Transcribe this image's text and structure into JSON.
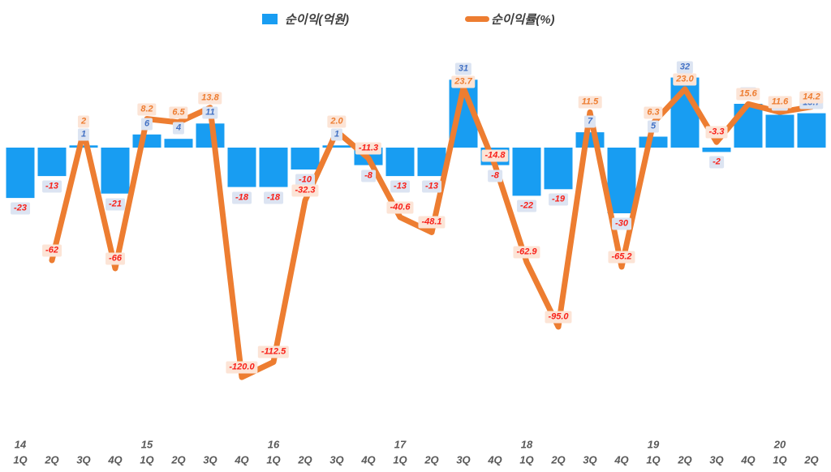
{
  "chart_data": {
    "type": "bar+line",
    "title": "",
    "legend": [
      {
        "label": "순이익(억원)",
        "series_type": "bar",
        "color": "#189df2"
      },
      {
        "label": "순이익률(%)",
        "series_type": "line",
        "color": "#ed7d31"
      }
    ],
    "categories": [
      {
        "year": "14",
        "quarter": "1Q"
      },
      {
        "quarter": "2Q"
      },
      {
        "quarter": "3Q"
      },
      {
        "quarter": "4Q"
      },
      {
        "year": "15",
        "quarter": "1Q"
      },
      {
        "quarter": "2Q"
      },
      {
        "quarter": "3Q"
      },
      {
        "quarter": "4Q"
      },
      {
        "year": "16",
        "quarter": "1Q"
      },
      {
        "quarter": "2Q"
      },
      {
        "quarter": "3Q"
      },
      {
        "quarter": "4Q"
      },
      {
        "year": "17",
        "quarter": "1Q"
      },
      {
        "quarter": "2Q"
      },
      {
        "quarter": "3Q"
      },
      {
        "quarter": "4Q"
      },
      {
        "year": "18",
        "quarter": "1Q"
      },
      {
        "quarter": "2Q"
      },
      {
        "quarter": "3Q"
      },
      {
        "quarter": "4Q"
      },
      {
        "year": "19",
        "quarter": "1Q"
      },
      {
        "quarter": "2Q"
      },
      {
        "quarter": "3Q"
      },
      {
        "quarter": "4Q"
      },
      {
        "year": "20",
        "quarter": "1Q"
      },
      {
        "quarter": "2Q"
      }
    ],
    "series": [
      {
        "name": "순이익(억원)",
        "type": "bar",
        "unit": "억원",
        "values": [
          -23,
          -13,
          1,
          -21,
          6,
          4,
          11,
          -18,
          -18,
          -10,
          1,
          -8,
          -13,
          -13,
          31,
          -8,
          -22,
          -19,
          7,
          -30,
          5,
          32,
          -2,
          20,
          15,
          15.7
        ],
        "labels": [
          "-23",
          "-13",
          "1",
          "-21",
          "6",
          "4",
          "11",
          "-18",
          "-18",
          "-10",
          "1",
          "-8",
          "-13",
          "-13",
          "31",
          "-8",
          "-22",
          "-19",
          "7",
          "-30",
          "5",
          "32",
          "-2",
          "",
          "",
          "15.7"
        ]
      },
      {
        "name": "순이익률(%)",
        "type": "line",
        "unit": "%",
        "values": [
          null,
          -62,
          2,
          -66,
          8.2,
          6.5,
          13.8,
          -120,
          -112.5,
          -32.3,
          2,
          -11.3,
          -40.6,
          -48.1,
          23.7,
          -14.8,
          -62.9,
          -95,
          11.5,
          -65.2,
          6.3,
          23,
          -3.3,
          15.6,
          11.6,
          14.2
        ],
        "labels": [
          "",
          "-62",
          "2",
          "-66",
          "8.2",
          "6.5",
          "13.8",
          "-120.0",
          "-112.5",
          "-32.3",
          "2.0",
          "-11.3",
          "-40.6",
          "-48.1",
          "23.7",
          "-14.8",
          "-62.9",
          "-95.0",
          "11.5",
          "-65.2",
          "6.3",
          "23.0",
          "-3.3",
          "15.6",
          "11.6",
          "14.2"
        ]
      }
    ],
    "colors": {
      "bar": "#189df2",
      "line": "#ed7d31",
      "bar_label_bg": "#dce4f2",
      "line_label_bg": "#fce4d6",
      "positive_bar_label_text": "#4472c4",
      "positive_line_label_text": "#ed7d31",
      "negative_label_text": "#f8211a",
      "axis_text": "#595959",
      "legend_text": "#404040"
    },
    "layout_hints": {
      "legend_position": "top-center",
      "grid": false,
      "value_axes_visible": false,
      "background": "#ffffff"
    }
  }
}
